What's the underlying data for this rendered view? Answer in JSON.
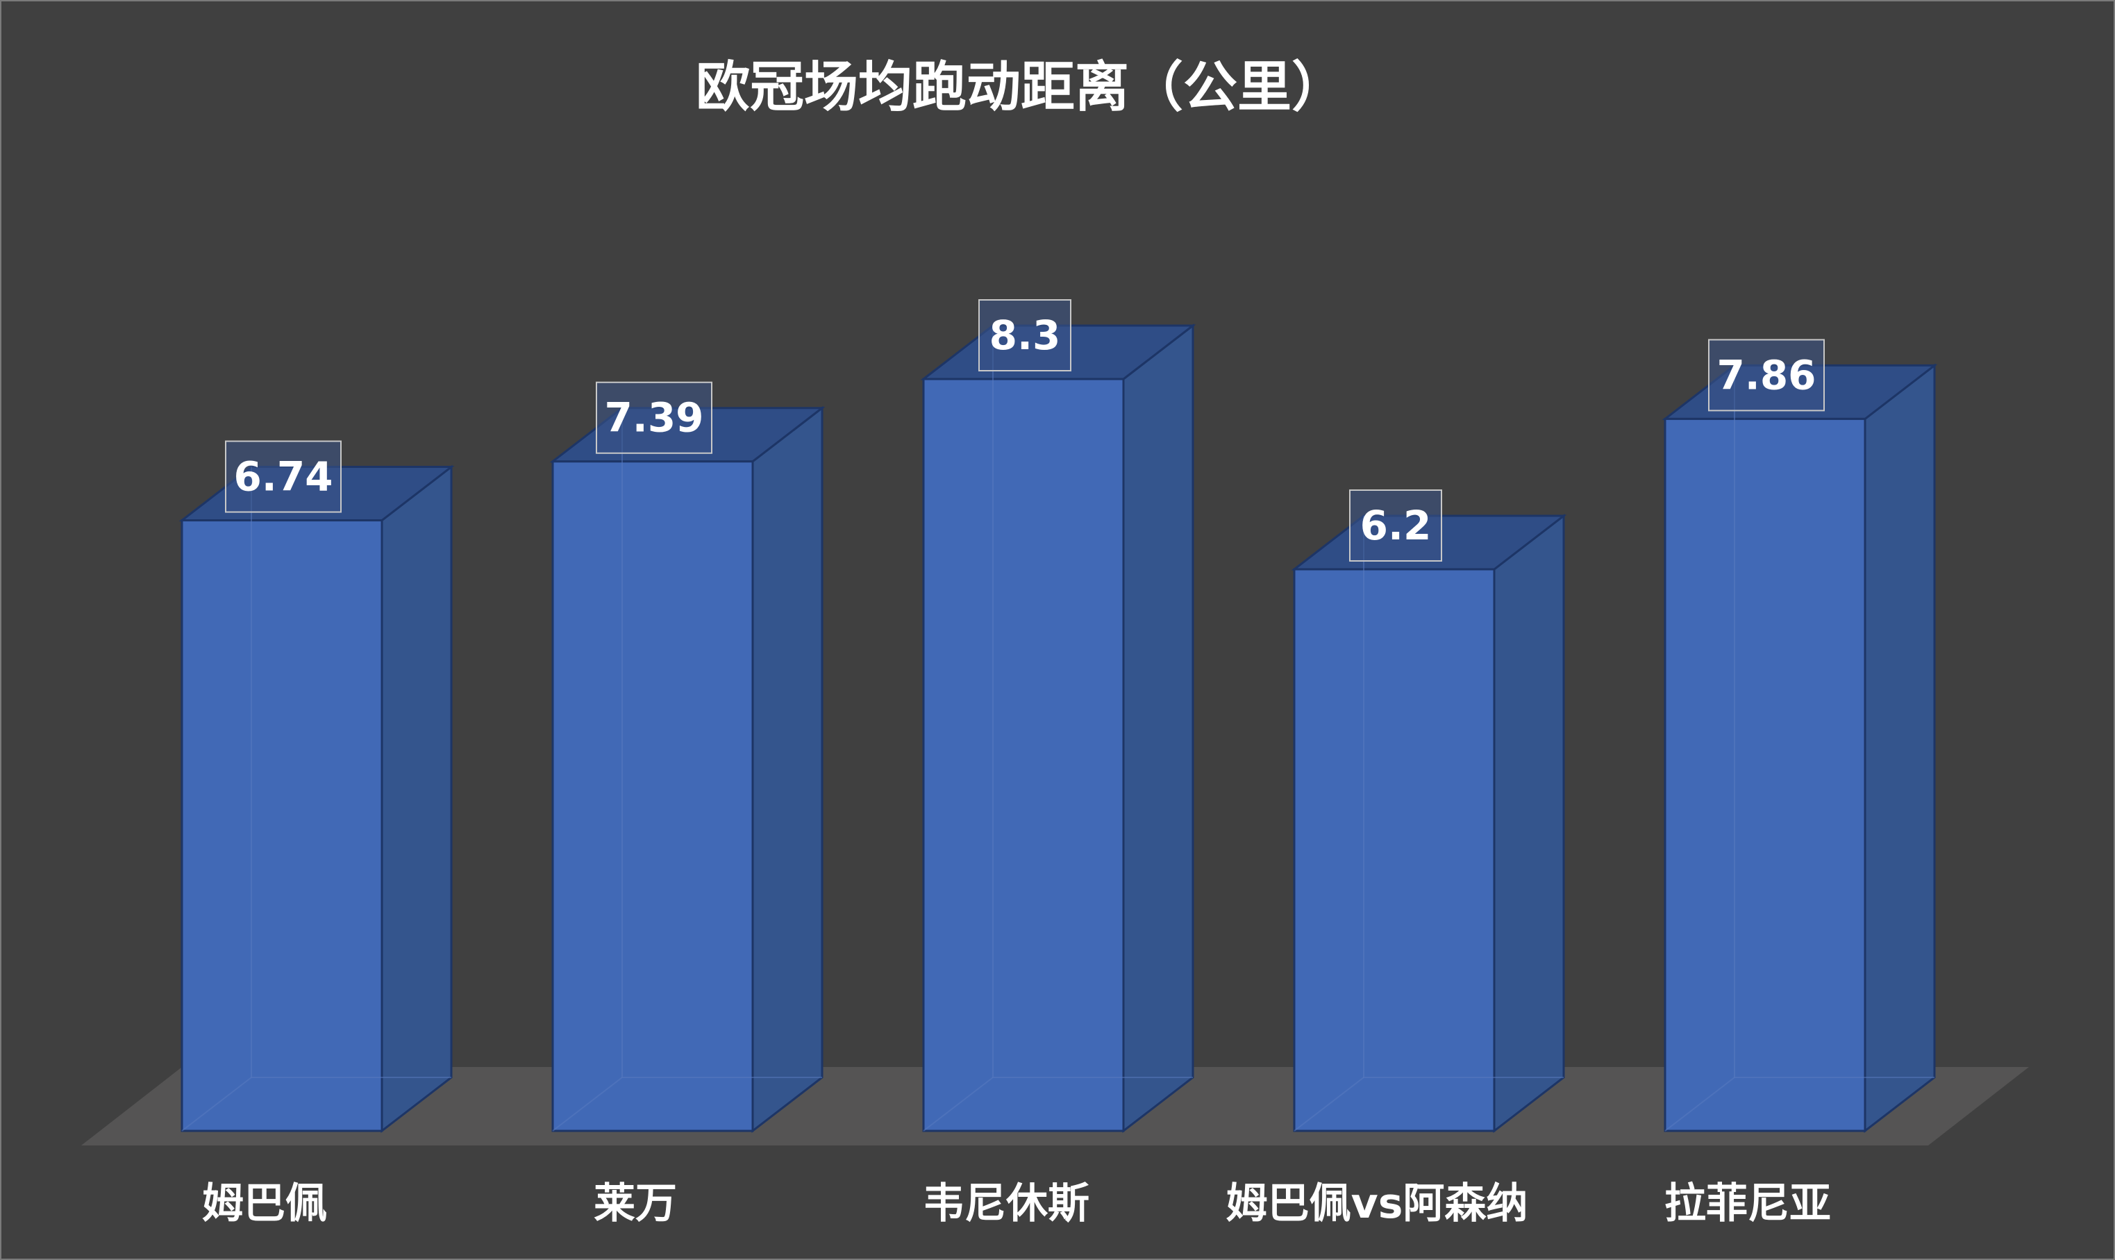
{
  "chart_data": {
    "type": "bar",
    "title": "欧冠场均跑动距离（公里）",
    "categories": [
      "姆巴佩",
      "莱万",
      "韦尼休斯",
      "姆巴佩vs阿森纳",
      "拉菲尼亚"
    ],
    "values": [
      6.74,
      7.39,
      8.3,
      6.2,
      7.86
    ],
    "ylim": [
      0,
      8.3
    ],
    "grid": false,
    "legend": "none",
    "style": "3d-column"
  },
  "colors": {
    "background": "#404040",
    "bar_front": "#4169b6",
    "bar_side": "#34558d",
    "bar_top": "#2f4d86",
    "bar_edge": "#1d3566",
    "floor": "#555454",
    "text": "#ffffff"
  }
}
